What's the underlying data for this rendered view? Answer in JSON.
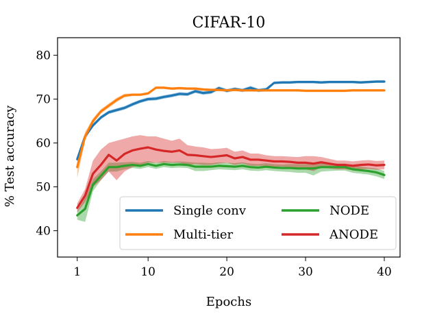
{
  "chart_data": {
    "type": "line",
    "title": "CIFAR-10",
    "xlabel": "Epochs",
    "ylabel": "% Test accuracy",
    "xlim": [
      -1.5,
      42
    ],
    "ylim": [
      34,
      84
    ],
    "xticks": [
      1,
      10,
      20,
      30,
      40
    ],
    "yticks": [
      40,
      50,
      60,
      70,
      80
    ],
    "grid": false,
    "legend": {
      "placement": "lower-right",
      "columns": 2
    },
    "x": [
      1,
      2,
      3,
      4,
      5,
      6,
      7,
      8,
      9,
      10,
      11,
      12,
      13,
      14,
      15,
      16,
      17,
      18,
      19,
      20,
      21,
      22,
      23,
      24,
      25,
      26,
      27,
      28,
      29,
      30,
      31,
      32,
      33,
      34,
      35,
      36,
      37,
      38,
      39,
      40
    ],
    "series": [
      {
        "name": "Single conv",
        "color": "#1f77b4",
        "values": [
          56.3,
          61.5,
          64.0,
          65.8,
          67.0,
          67.5,
          68.0,
          68.8,
          69.5,
          70.0,
          70.1,
          70.5,
          70.8,
          71.2,
          71.1,
          71.8,
          71.4,
          71.6,
          72.5,
          71.9,
          72.3,
          72.0,
          72.6,
          72.0,
          72.2,
          73.7,
          73.8,
          73.8,
          73.9,
          73.9,
          73.9,
          73.8,
          73.9,
          73.9,
          73.9,
          73.9,
          73.8,
          73.9,
          74.0,
          74.0
        ],
        "lower": [
          55.8,
          61.0,
          63.6,
          65.4,
          66.6,
          67.1,
          67.6,
          68.4,
          69.1,
          69.6,
          69.7,
          70.1,
          70.4,
          70.8,
          70.7,
          71.4,
          71.0,
          71.2,
          72.1,
          71.5,
          71.9,
          71.6,
          72.2,
          71.6,
          71.8,
          73.4,
          73.5,
          73.5,
          73.6,
          73.6,
          73.6,
          73.5,
          73.6,
          73.6,
          73.6,
          73.6,
          73.5,
          73.6,
          73.7,
          73.7
        ],
        "upper": [
          56.8,
          62.0,
          64.4,
          66.2,
          67.4,
          67.9,
          68.4,
          69.2,
          69.9,
          70.4,
          70.5,
          70.9,
          71.2,
          71.6,
          71.5,
          72.2,
          71.8,
          72.0,
          72.9,
          72.3,
          72.7,
          72.4,
          73.0,
          72.4,
          72.6,
          74.0,
          74.1,
          74.1,
          74.2,
          74.2,
          74.2,
          74.1,
          74.2,
          74.2,
          74.2,
          74.2,
          74.1,
          74.2,
          74.3,
          74.3
        ]
      },
      {
        "name": "Multi-tier",
        "color": "#ff7f0e",
        "values": [
          54.5,
          61.5,
          65.0,
          67.2,
          68.5,
          69.8,
          70.8,
          71.0,
          71.0,
          71.3,
          72.6,
          72.6,
          72.4,
          72.5,
          72.4,
          72.4,
          72.2,
          72.1,
          72.1,
          72.0,
          72.1,
          72.0,
          72.0,
          72.0,
          72.0,
          72.0,
          72.0,
          72.0,
          72.0,
          71.9,
          71.9,
          71.9,
          71.9,
          71.9,
          71.9,
          72.0,
          72.0,
          72.0,
          72.0,
          72.0
        ],
        "lower": [
          52.0,
          60.5,
          64.4,
          66.7,
          68.0,
          69.3,
          70.4,
          70.7,
          70.7,
          71.0,
          72.3,
          72.3,
          72.1,
          72.2,
          72.1,
          72.1,
          71.9,
          71.8,
          71.8,
          71.7,
          71.8,
          71.7,
          71.7,
          71.7,
          71.7,
          71.7,
          71.7,
          71.7,
          71.7,
          71.6,
          71.6,
          71.6,
          71.6,
          71.6,
          71.6,
          71.7,
          71.7,
          71.7,
          71.7,
          71.7
        ],
        "upper": [
          57.0,
          62.5,
          65.6,
          67.7,
          69.0,
          70.3,
          71.2,
          71.3,
          71.3,
          71.6,
          72.9,
          72.9,
          72.7,
          72.8,
          72.7,
          72.7,
          72.5,
          72.4,
          72.4,
          72.3,
          72.4,
          72.3,
          72.3,
          72.3,
          72.3,
          72.3,
          72.3,
          72.3,
          72.3,
          72.2,
          72.2,
          72.2,
          72.2,
          72.2,
          72.2,
          72.3,
          72.3,
          72.3,
          72.3,
          72.3
        ]
      },
      {
        "name": "NODE",
        "color": "#2ca02c",
        "values": [
          43.5,
          45.0,
          50.5,
          52.5,
          54.5,
          54.5,
          54.8,
          55.0,
          54.8,
          55.2,
          54.8,
          55.2,
          55.0,
          55.1,
          55.0,
          54.6,
          54.6,
          54.6,
          54.8,
          54.7,
          54.6,
          54.8,
          54.5,
          54.4,
          54.6,
          54.4,
          54.3,
          54.3,
          54.2,
          54.2,
          54.2,
          54.5,
          54.5,
          54.5,
          54.5,
          54.0,
          53.8,
          53.6,
          53.3,
          52.7
        ],
        "lower": [
          42.5,
          42.0,
          49.0,
          51.5,
          53.5,
          53.5,
          54.0,
          54.3,
          54.1,
          54.5,
          54.1,
          54.5,
          54.3,
          54.4,
          54.3,
          53.6,
          53.6,
          53.8,
          54.0,
          53.9,
          53.8,
          54.0,
          53.7,
          53.6,
          53.8,
          53.6,
          53.5,
          53.4,
          53.2,
          53.2,
          52.6,
          53.5,
          53.6,
          53.7,
          53.7,
          53.2,
          53.0,
          52.8,
          52.4,
          51.8
        ],
        "upper": [
          44.5,
          47.5,
          51.8,
          53.5,
          55.5,
          55.5,
          55.6,
          55.7,
          55.5,
          55.9,
          55.5,
          55.9,
          55.7,
          55.8,
          55.7,
          55.5,
          55.5,
          55.4,
          55.6,
          55.5,
          55.4,
          55.6,
          55.3,
          55.2,
          55.4,
          55.2,
          55.1,
          55.2,
          55.2,
          55.2,
          55.3,
          55.5,
          55.4,
          55.3,
          55.3,
          54.8,
          54.6,
          54.4,
          54.2,
          53.6
        ]
      },
      {
        "name": "ANODE",
        "color": "#d62728",
        "values": [
          45.2,
          48.0,
          53.0,
          55.0,
          57.3,
          56.0,
          57.5,
          58.3,
          58.7,
          59.0,
          58.5,
          58.2,
          58.0,
          58.3,
          57.3,
          57.2,
          57.0,
          56.8,
          57.0,
          57.2,
          56.5,
          56.8,
          56.2,
          56.2,
          56.0,
          55.8,
          55.8,
          55.7,
          55.5,
          55.5,
          55.3,
          55.6,
          55.3,
          55.0,
          55.0,
          54.8,
          55.0,
          55.1,
          54.9,
          55.0
        ],
        "lower": [
          44.2,
          46.5,
          50.0,
          51.5,
          53.5,
          51.5,
          53.5,
          54.5,
          55.0,
          55.5,
          55.5,
          55.5,
          55.5,
          55.5,
          55.0,
          55.2,
          55.0,
          55.0,
          55.3,
          55.5,
          55.0,
          55.3,
          54.8,
          54.8,
          54.8,
          54.6,
          54.6,
          54.5,
          54.2,
          54.0,
          53.6,
          54.4,
          54.2,
          54.0,
          54.0,
          53.8,
          54.0,
          54.1,
          53.9,
          54.0
        ],
        "upper": [
          46.2,
          49.5,
          56.0,
          58.5,
          60.0,
          60.5,
          61.0,
          61.5,
          61.8,
          61.5,
          61.5,
          61.0,
          60.5,
          61.0,
          59.5,
          59.2,
          59.0,
          58.6,
          58.7,
          58.9,
          58.0,
          58.3,
          57.6,
          57.6,
          57.2,
          57.0,
          57.0,
          56.9,
          56.8,
          57.0,
          57.0,
          56.8,
          56.4,
          56.0,
          56.0,
          55.8,
          56.0,
          56.1,
          55.9,
          56.0
        ]
      }
    ]
  }
}
